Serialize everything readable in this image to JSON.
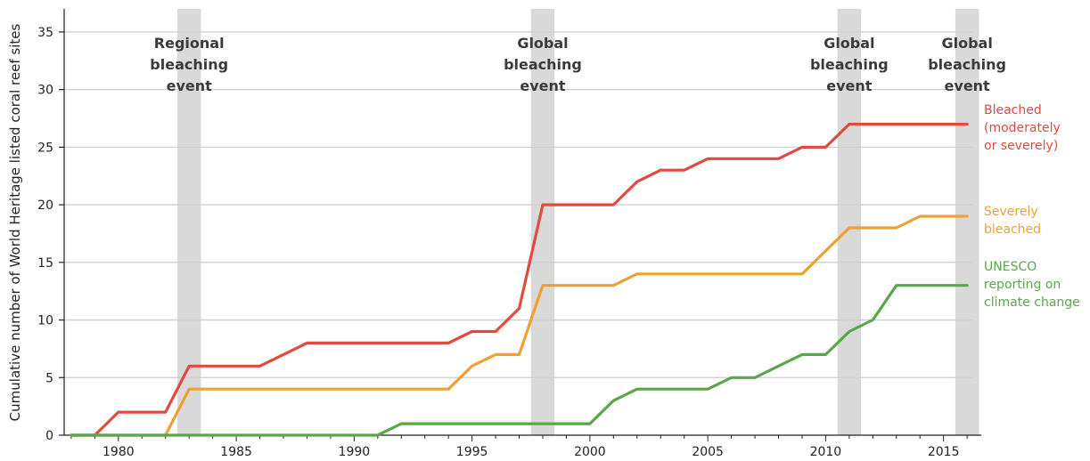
{
  "chart_data": {
    "type": "line",
    "title": "",
    "xlabel": "",
    "ylabel": "Cumulative number of World Heritage listed coral reef sites",
    "xlim": [
      1977.7,
      1916.6
    ],
    "ylim": [
      0,
      37
    ],
    "x_ticks": [
      1980,
      1985,
      1990,
      1995,
      2000,
      2005,
      2010,
      2015
    ],
    "y_ticks": [
      0,
      5,
      10,
      15,
      20,
      25,
      30,
      35
    ],
    "grid": "horizontal",
    "events": [
      {
        "label": "Regional bleaching event",
        "lines": [
          "Regional",
          "bleaching",
          "event"
        ],
        "start": 1982.5,
        "end": 1983.5
      },
      {
        "label": "Global bleaching event",
        "lines": [
          "Global",
          "bleaching",
          "event"
        ],
        "start": 1997.5,
        "end": 1998.5
      },
      {
        "label": "Global bleaching event",
        "lines": [
          "Global",
          "bleaching",
          "event"
        ],
        "start": 2010.5,
        "end": 2011.5
      },
      {
        "label": "Global bleaching event",
        "lines": [
          "Global",
          "bleaching",
          "event"
        ],
        "start": 2015.5,
        "end": 2016.5
      }
    ],
    "series": [
      {
        "name": "Bleached (moderately or severely)",
        "label_lines": [
          "Bleached",
          "(moderately",
          "or severely)"
        ],
        "color": "#e04a3f",
        "x": [
          1978,
          1979,
          1980,
          1981,
          1982,
          1983,
          1984,
          1985,
          1986,
          1987,
          1988,
          1989,
          1990,
          1991,
          1992,
          1993,
          1994,
          1995,
          1996,
          1997,
          1998,
          1999,
          2000,
          2001,
          2002,
          2003,
          2004,
          2005,
          2006,
          2007,
          2008,
          2009,
          2010,
          2011,
          2012,
          2013,
          2014,
          2015,
          2016
        ],
        "y": [
          0,
          0,
          2,
          2,
          2,
          6,
          6,
          6,
          6,
          7,
          8,
          8,
          8,
          8,
          8,
          8,
          8,
          9,
          9,
          11,
          20,
          20,
          20,
          20,
          22,
          23,
          23,
          24,
          24,
          24,
          24,
          25,
          25,
          27,
          27,
          27,
          27,
          27,
          27
        ]
      },
      {
        "name": "Severely bleached",
        "label_lines": [
          "Severely",
          "bleached"
        ],
        "color": "#f0a030",
        "x": [
          1978,
          1979,
          1980,
          1981,
          1982,
          1983,
          1984,
          1985,
          1986,
          1987,
          1988,
          1989,
          1990,
          1991,
          1992,
          1993,
          1994,
          1995,
          1996,
          1997,
          1998,
          1999,
          2000,
          2001,
          2002,
          2003,
          2004,
          2005,
          2006,
          2007,
          2008,
          2009,
          2010,
          2011,
          2012,
          2013,
          2014,
          2015,
          2016
        ],
        "y": [
          0,
          0,
          0,
          0,
          0,
          4,
          4,
          4,
          4,
          4,
          4,
          4,
          4,
          4,
          4,
          4,
          4,
          6,
          7,
          7,
          13,
          13,
          13,
          13,
          14,
          14,
          14,
          14,
          14,
          14,
          14,
          14,
          16,
          18,
          18,
          18,
          19,
          19,
          19
        ]
      },
      {
        "name": "UNESCO reporting on climate change",
        "label_lines": [
          "UNESCO",
          "reporting on",
          "climate change"
        ],
        "color": "#5aa64a",
        "x": [
          1978,
          1979,
          1980,
          1981,
          1982,
          1983,
          1984,
          1985,
          1986,
          1987,
          1988,
          1989,
          1990,
          1991,
          1992,
          1993,
          1994,
          1995,
          1996,
          1997,
          1998,
          1999,
          2000,
          2001,
          2002,
          2003,
          2004,
          2005,
          2006,
          2007,
          2008,
          2009,
          2010,
          2011,
          2012,
          2013,
          2014,
          2015,
          2016
        ],
        "y": [
          0,
          0,
          0,
          0,
          0,
          0,
          0,
          0,
          0,
          0,
          0,
          0,
          0,
          0,
          1,
          1,
          1,
          1,
          1,
          1,
          1,
          1,
          1,
          3,
          4,
          4,
          4,
          4,
          5,
          5,
          6,
          7,
          7,
          9,
          10,
          13,
          13,
          13,
          13
        ]
      }
    ]
  }
}
